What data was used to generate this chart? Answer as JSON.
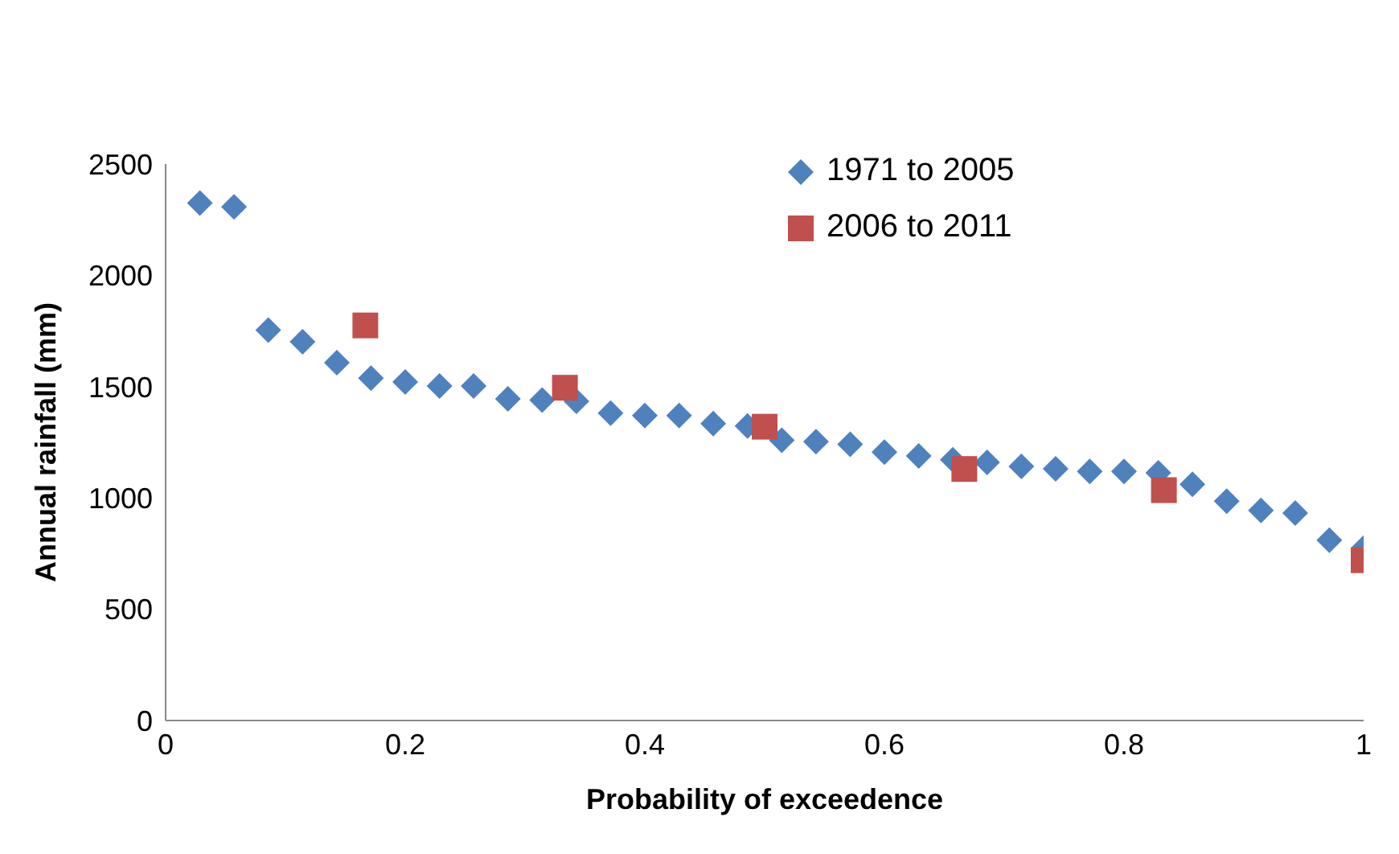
{
  "chart_data": {
    "type": "scatter",
    "xlabel": "Probability of exceedence",
    "ylabel": "Annual rainfall (mm)",
    "xlim": [
      0,
      1
    ],
    "xticks": [
      0,
      0.2,
      0.4,
      0.6,
      0.8,
      1
    ],
    "ylim": [
      0,
      2500
    ],
    "yticks": [
      0,
      500,
      1000,
      1500,
      2000,
      2500
    ],
    "grid": false,
    "legend": "top",
    "series": [
      {
        "name": "1971 to 2005",
        "color": "#4f81bd",
        "marker": "diamond",
        "x": [
          0.0286,
          0.0571,
          0.0857,
          0.1143,
          0.1429,
          0.1714,
          0.2,
          0.2286,
          0.2571,
          0.2857,
          0.3143,
          0.3429,
          0.3714,
          0.4,
          0.4286,
          0.4571,
          0.4857,
          0.5143,
          0.5429,
          0.5714,
          0.6,
          0.6286,
          0.6571,
          0.6857,
          0.7143,
          0.7429,
          0.7714,
          0.8,
          0.8286,
          0.8571,
          0.8857,
          0.9143,
          0.9429,
          0.9714,
          1.0
        ],
        "values": [
          2325,
          2308,
          1754,
          1702,
          1608,
          1538,
          1521,
          1503,
          1503,
          1445,
          1440,
          1434,
          1381,
          1370,
          1370,
          1334,
          1323,
          1259,
          1253,
          1241,
          1206,
          1189,
          1171,
          1160,
          1142,
          1131,
          1119,
          1119,
          1113,
          1061,
          985,
          944,
          932,
          810,
          775
        ]
      },
      {
        "name": "2006 to 2011",
        "color": "#c0504d",
        "marker": "square",
        "x": [
          0.1667,
          0.3333,
          0.5,
          0.6667,
          0.8333,
          1.0
        ],
        "values": [
          1775,
          1495,
          1320,
          1130,
          1035,
          720
        ]
      }
    ]
  }
}
